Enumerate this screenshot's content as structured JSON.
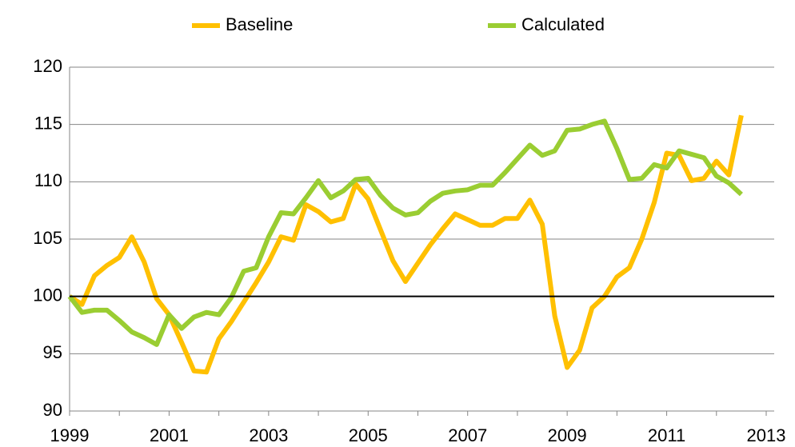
{
  "chart_data": {
    "type": "line",
    "x": [
      1999,
      1999.25,
      1999.5,
      1999.75,
      2000,
      2000.25,
      2000.5,
      2000.75,
      2001,
      2001.25,
      2001.5,
      2001.75,
      2002,
      2002.25,
      2002.5,
      2002.75,
      2003,
      2003.25,
      2003.5,
      2003.75,
      2004,
      2004.25,
      2004.5,
      2004.75,
      2005,
      2005.25,
      2005.5,
      2005.75,
      2006,
      2006.25,
      2006.5,
      2006.75,
      2007,
      2007.25,
      2007.5,
      2007.75,
      2008,
      2008.25,
      2008.5,
      2008.75,
      2009,
      2009.25,
      2009.5,
      2009.75,
      2010,
      2010.25,
      2010.5,
      2010.75,
      2011,
      2011.25,
      2011.5,
      2011.75,
      2012,
      2012.25,
      2012.5
    ],
    "series": [
      {
        "name": "Baseline",
        "color": "#ffc000",
        "values": [
          100,
          99.3,
          101.8,
          102.7,
          103.4,
          105.2,
          103,
          99.8,
          98.4,
          96,
          93.5,
          93.4,
          96.3,
          97.8,
          99.5,
          101.2,
          103,
          105.2,
          104.9,
          108,
          107.4,
          106.5,
          106.8,
          109.8,
          108.5,
          105.8,
          103.1,
          101.3,
          102.9,
          104.5,
          105.9,
          107.2,
          106.7,
          106.2,
          106.2,
          106.8,
          106.8,
          108.4,
          106.3,
          98.3,
          93.8,
          95.3,
          99,
          100,
          101.7,
          102.5,
          105,
          108.2,
          112.5,
          112.3,
          110.1,
          110.3,
          111.8,
          110.6,
          115.8
        ]
      },
      {
        "name": "Calculated",
        "color": "#9acd32",
        "values": [
          100,
          98.6,
          98.8,
          98.8,
          97.9,
          96.9,
          96.4,
          95.8,
          98.4,
          97.2,
          98.2,
          98.6,
          98.4,
          99.9,
          102.2,
          102.5,
          105.2,
          107.3,
          107.2,
          108.6,
          110.1,
          108.6,
          109.2,
          110.2,
          110.3,
          108.8,
          107.7,
          107.1,
          107.3,
          108.3,
          109,
          109.2,
          109.3,
          109.7,
          109.7,
          110.8,
          112,
          113.2,
          112.3,
          112.7,
          114.5,
          114.6,
          115,
          115.3,
          112.9,
          110.2,
          110.3,
          111.5,
          111.2,
          112.7,
          112.4,
          112.1,
          110.5,
          109.9,
          108.9
        ]
      }
    ],
    "xlim": [
      1999,
      2013
    ],
    "xticks": [
      1999,
      2001,
      2003,
      2005,
      2007,
      2009,
      2011,
      2013
    ],
    "xticks_minor": [
      2000,
      2002,
      2004,
      2006,
      2008,
      2010,
      2012
    ],
    "ylim": [
      90,
      120
    ],
    "yticks": [
      90,
      95,
      100,
      105,
      110,
      115,
      120
    ],
    "reference_line": 100,
    "grid": true,
    "legend": "top"
  }
}
